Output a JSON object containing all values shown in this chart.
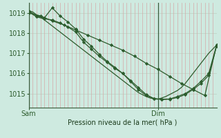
{
  "title": "Pression niveau de la mer( hPa )",
  "bg_color": "#ceeae0",
  "grid_color_h": "#c0d4c8",
  "grid_color_v": "#d4a8a8",
  "line_color": "#2d5c2d",
  "marker_color": "#2d5c2d",
  "xlabel_sam": "Sam",
  "xlabel_dim": "Dim",
  "ylim": [
    1014.3,
    1019.5
  ],
  "xlim": [
    0,
    48
  ],
  "yticks": [
    1015,
    1016,
    1017,
    1018,
    1019
  ],
  "sam_x": 0,
  "dim_x": 33,
  "series1_x": [
    0,
    1,
    2,
    3,
    4,
    5,
    6,
    7,
    8,
    9,
    10,
    11,
    12,
    13,
    14,
    15,
    16,
    17,
    18,
    19,
    20,
    21,
    22,
    23,
    24,
    25,
    26,
    27,
    28,
    29,
    30,
    31,
    32,
    33,
    34,
    35,
    36,
    37,
    38,
    39,
    40,
    41,
    42,
    43,
    44,
    45,
    46,
    47,
    48
  ],
  "series1_y": [
    1019.1,
    1019.05,
    1018.9,
    1018.8,
    1018.65,
    1018.5,
    1018.35,
    1018.2,
    1018.05,
    1017.9,
    1017.75,
    1017.6,
    1017.45,
    1017.3,
    1017.15,
    1017.0,
    1016.85,
    1016.7,
    1016.55,
    1016.4,
    1016.25,
    1016.1,
    1015.95,
    1015.8,
    1015.65,
    1015.5,
    1015.35,
    1015.2,
    1015.05,
    1014.95,
    1014.85,
    1014.78,
    1014.73,
    1014.72,
    1014.78,
    1014.85,
    1014.95,
    1015.05,
    1015.15,
    1015.3,
    1015.5,
    1015.75,
    1016.0,
    1016.25,
    1016.5,
    1016.75,
    1017.0,
    1017.2,
    1017.4
  ],
  "series2_x": [
    0,
    2,
    4,
    6,
    8,
    10,
    12,
    14,
    16,
    18,
    20,
    22,
    24,
    26,
    28,
    30,
    32,
    34,
    36,
    38,
    40,
    42,
    44,
    46,
    48
  ],
  "series2_y": [
    1019.1,
    1018.85,
    1018.75,
    1019.25,
    1018.85,
    1018.55,
    1018.2,
    1017.7,
    1017.35,
    1016.95,
    1016.6,
    1016.3,
    1016.0,
    1015.65,
    1015.3,
    1014.95,
    1014.75,
    1014.72,
    1014.73,
    1014.85,
    1015.0,
    1015.25,
    1015.6,
    1016.0,
    1017.4
  ],
  "series3_x": [
    0,
    2,
    4,
    6,
    8,
    10,
    12,
    14,
    16,
    18,
    20,
    22,
    24,
    26,
    28,
    30,
    32,
    34,
    36,
    38,
    40,
    42,
    44,
    46,
    48
  ],
  "series3_y": [
    1019.05,
    1018.8,
    1018.7,
    1018.65,
    1018.5,
    1018.3,
    1018.05,
    1017.55,
    1017.2,
    1016.85,
    1016.55,
    1016.25,
    1016.0,
    1015.6,
    1015.2,
    1014.9,
    1014.75,
    1014.7,
    1014.72,
    1014.8,
    1014.95,
    1015.2,
    1015.5,
    1015.9,
    1017.35
  ],
  "series4_x": [
    0,
    3,
    6,
    9,
    12,
    15,
    18,
    21,
    24,
    27,
    30,
    33,
    36,
    39,
    42,
    45,
    48
  ],
  "series4_y": [
    1019.0,
    1018.85,
    1018.6,
    1018.4,
    1018.15,
    1017.9,
    1017.65,
    1017.4,
    1017.15,
    1016.85,
    1016.5,
    1016.2,
    1015.85,
    1015.5,
    1015.2,
    1014.9,
    1017.4
  ]
}
